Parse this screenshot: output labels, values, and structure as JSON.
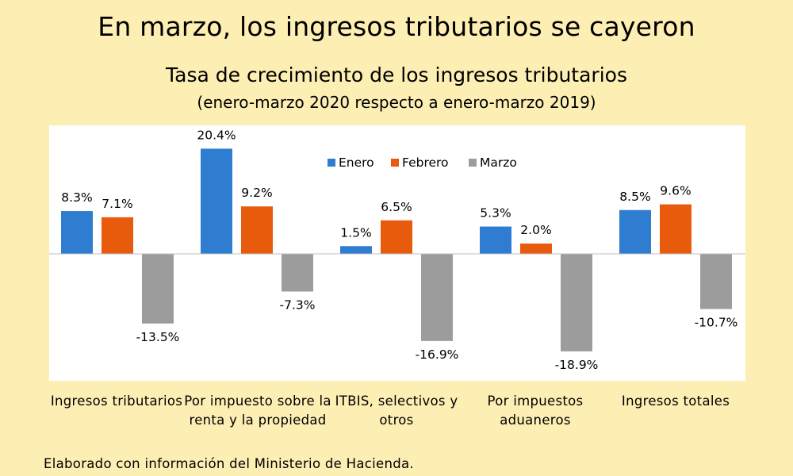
{
  "headline": "En marzo, los ingresos tributarios se cayeron",
  "source": "Elaborado con información del Ministerio de Hacienda.",
  "colors": {
    "background": "#fdeeb3",
    "plot_area": "#ffffff",
    "Enero": "#2e7dd0",
    "Febrero": "#e85a0c",
    "Marzo": "#9c9c9c"
  },
  "chart_data": {
    "type": "bar",
    "title": "Tasa de crecimiento de los ingresos tributarios",
    "subtitle": "(enero-marzo 2020 respecto a enero-marzo 2019)",
    "categories": [
      "Ingresos tributarios",
      "Por impuesto sobre la renta y la propiedad",
      "ITBIS, selectivos y otros",
      "Por impuestos aduaneros",
      "Ingresos totales"
    ],
    "series": [
      {
        "name": "Enero",
        "values": [
          8.3,
          20.4,
          1.5,
          5.3,
          8.5
        ],
        "labels": [
          "8.3%",
          "20.4%",
          "1.5%",
          "5.3%",
          "8.5%"
        ]
      },
      {
        "name": "Febrero",
        "values": [
          7.1,
          9.2,
          6.5,
          2.0,
          9.6
        ],
        "labels": [
          "7.1%",
          "9.2%",
          "6.5%",
          "2.0%",
          "9.6%"
        ]
      },
      {
        "name": "Marzo",
        "values": [
          -13.5,
          -7.3,
          -16.9,
          -18.9,
          -10.7
        ],
        "labels": [
          "-13.5%",
          "-7.3%",
          "-16.9%",
          "-18.9%",
          "-10.7%"
        ]
      }
    ],
    "ylim": [
      -24,
      25
    ],
    "grid": false,
    "legend_position": "top-center",
    "xlabel": "",
    "ylabel": ""
  }
}
